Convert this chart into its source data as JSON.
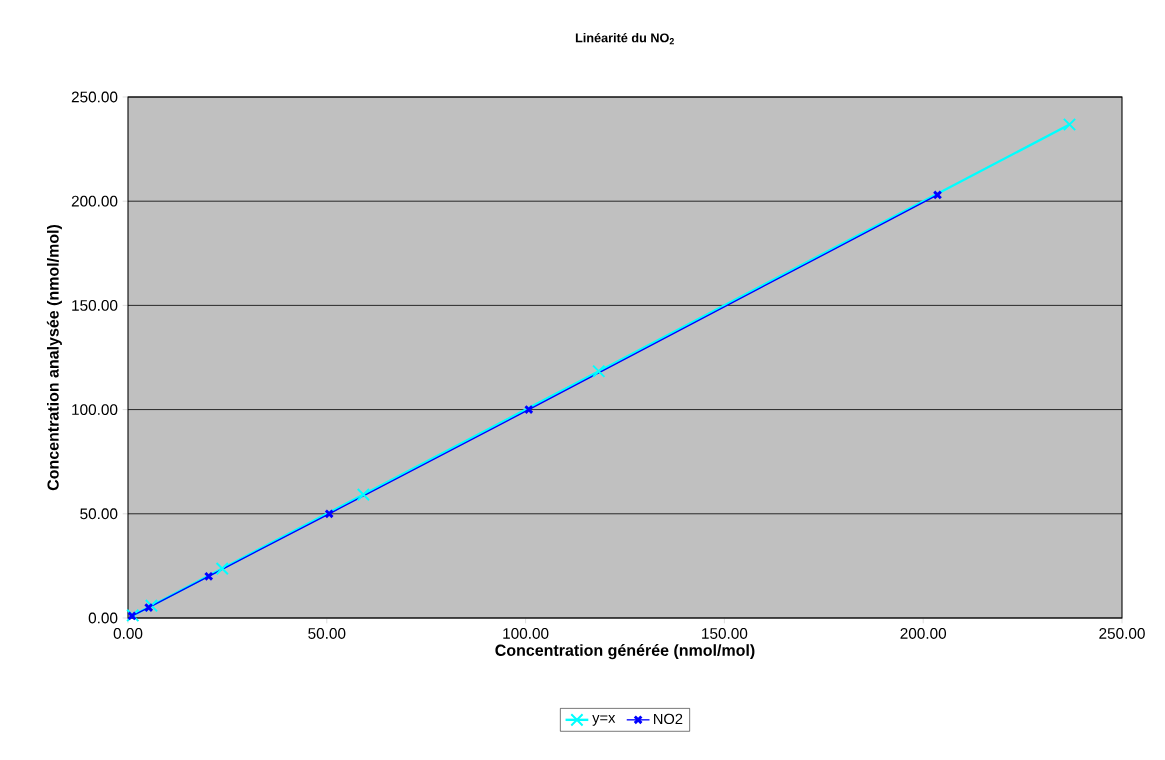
{
  "chart_data": {
    "type": "line",
    "title": "Linéarité du NO$_{2}$",
    "xlabel": "Concentration générée (nmol/mol)",
    "ylabel": "Concentration analysée (nmol/mol)",
    "series": [
      {
        "name": "y=x",
        "color": "#00ffff",
        "marker": "cross",
        "x": [
          1.2,
          5.9,
          23.7,
          59.2,
          118.4,
          236.8
        ],
        "values": [
          1.2,
          5.9,
          23.7,
          59.2,
          118.4,
          236.8
        ]
      },
      {
        "name": "NO2",
        "color": "#0000ff",
        "marker": "cross",
        "x": [
          1.0,
          5.2,
          20.3,
          50.6,
          100.8,
          203.6
        ],
        "values": [
          1.0,
          5.0,
          20.0,
          50.0,
          100.0,
          203.0
        ]
      }
    ],
    "xlim": [
      0,
      250
    ],
    "ylim": [
      0,
      250
    ],
    "xticks": [
      {
        "value": 0,
        "label": "0.00"
      },
      {
        "value": 50,
        "label": "50.00"
      },
      {
        "value": 100,
        "label": "100.00"
      },
      {
        "value": 150,
        "label": "150.00"
      },
      {
        "value": 200,
        "label": "200.00"
      },
      {
        "value": 250,
        "label": "250.00"
      }
    ],
    "yticks": [
      {
        "value": 0,
        "label": "0.00"
      },
      {
        "value": 50,
        "label": "50.00"
      },
      {
        "value": 100,
        "label": "100.00"
      },
      {
        "value": 150,
        "label": "150.00"
      },
      {
        "value": 200,
        "label": "200.00"
      },
      {
        "value": 250,
        "label": "250.00"
      }
    ],
    "grid": "y",
    "legend": "bottom"
  }
}
